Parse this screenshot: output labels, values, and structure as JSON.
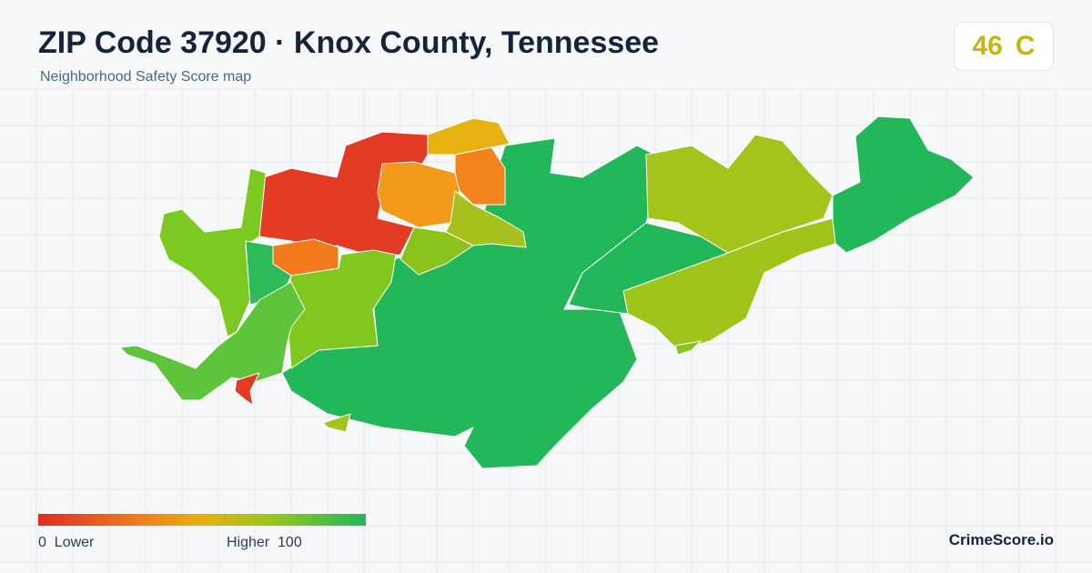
{
  "header": {
    "title": "ZIP Code 37920 · Knox County, Tennessee",
    "subtitle": "Neighborhood Safety Score map"
  },
  "score": {
    "value": 46,
    "grade": "C"
  },
  "legend": {
    "min": 0,
    "min_label": "Lower",
    "max_label": "Higher",
    "max": 100
  },
  "brand": "CrimeScore.io"
}
